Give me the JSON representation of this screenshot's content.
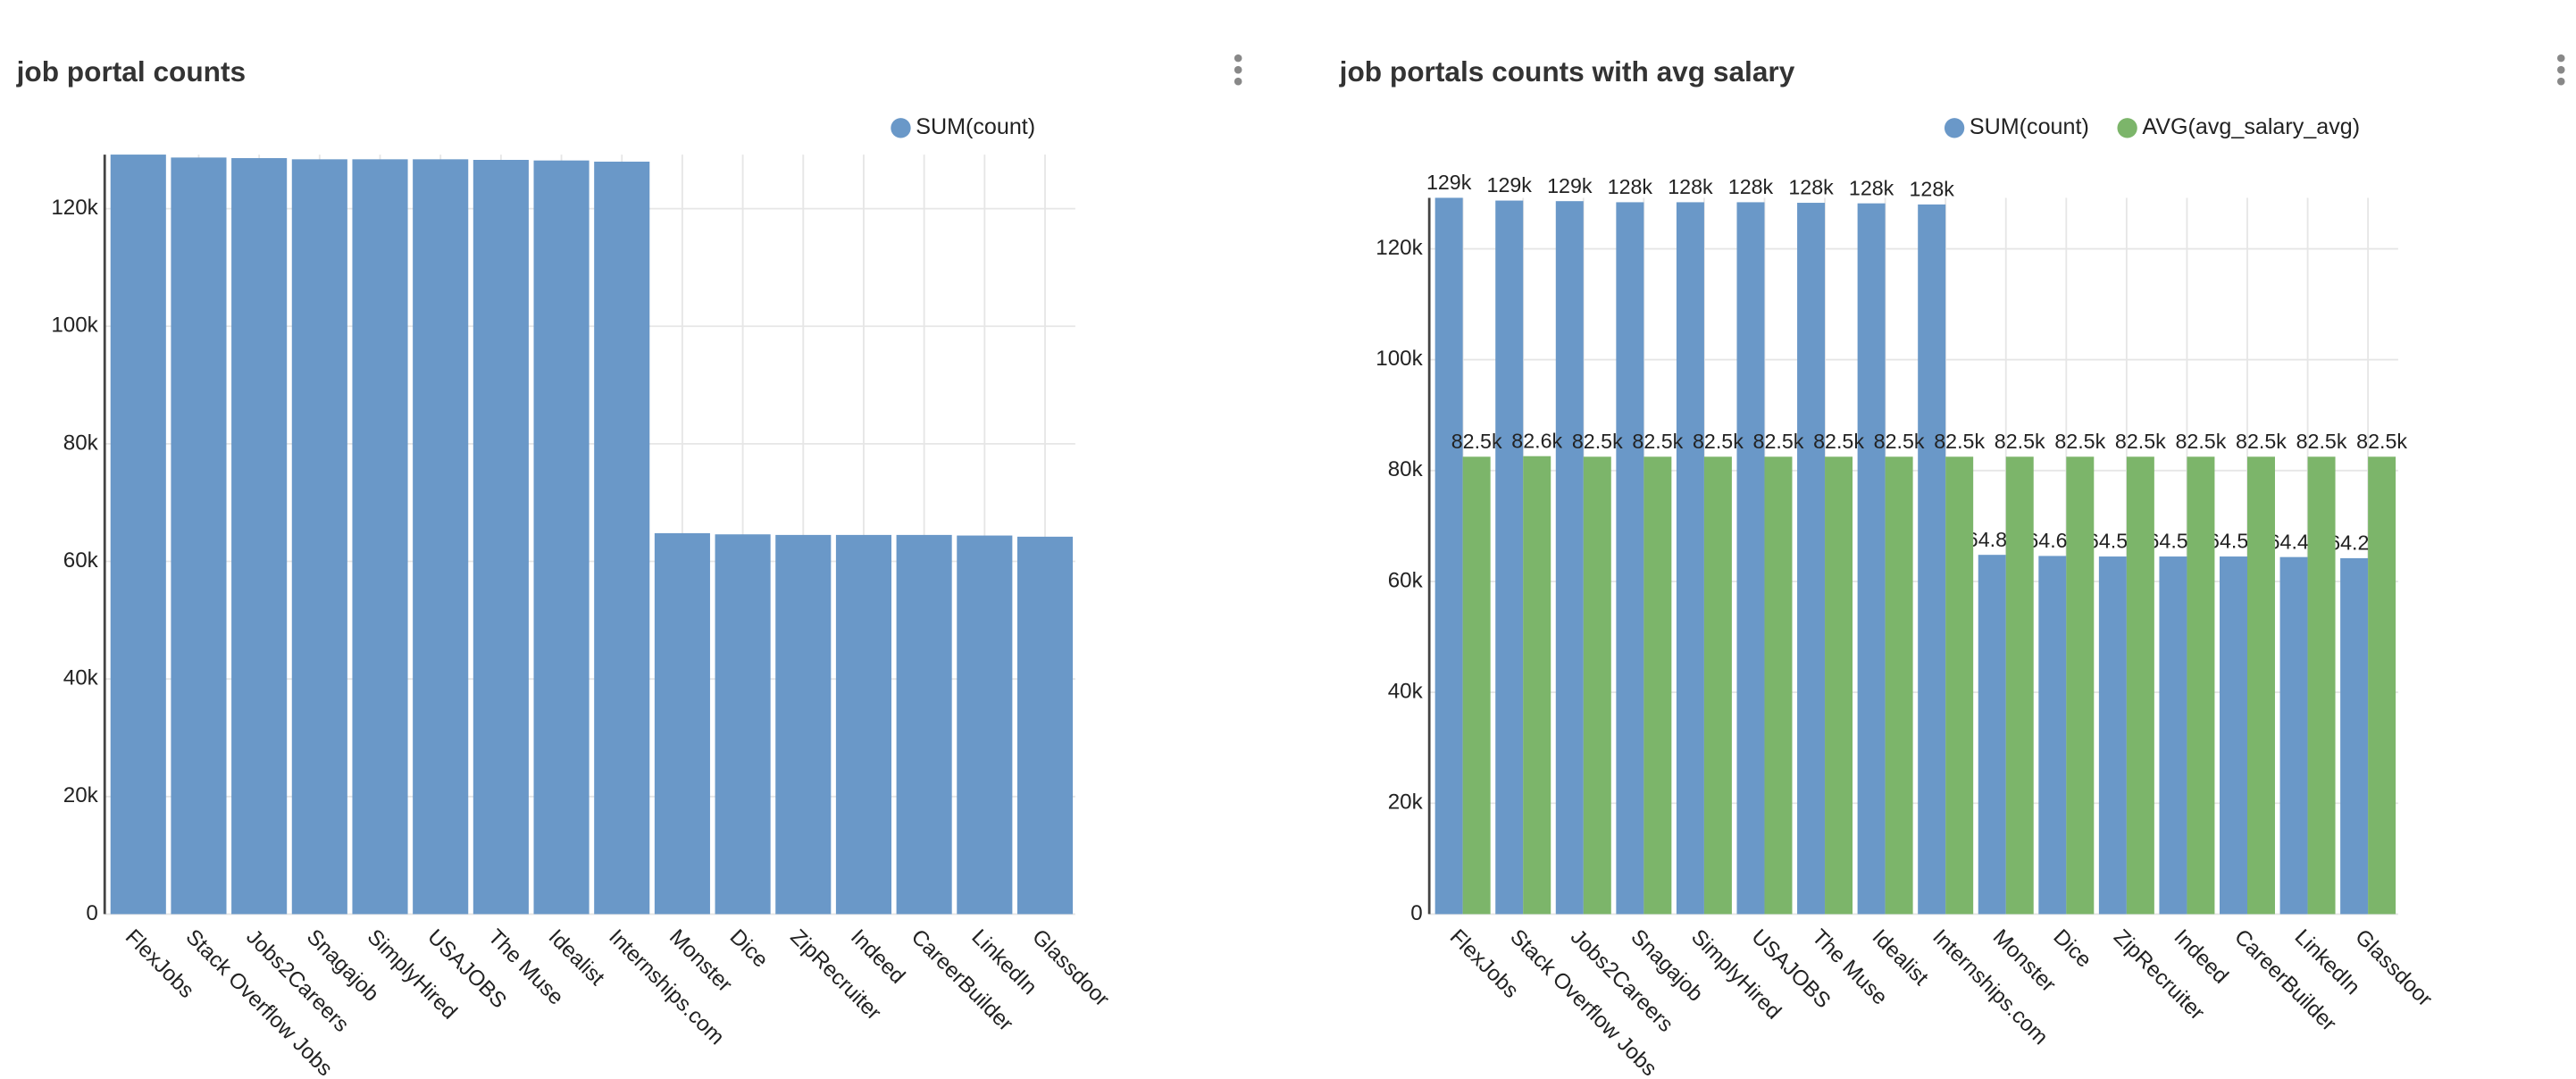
{
  "chart_data": [
    {
      "type": "bar",
      "title": "job portal counts",
      "categories": [
        "FlexJobs",
        "Stack Overflow Jobs",
        "Jobs2Careers",
        "Snagajob",
        "SimplyHired",
        "USAJOBS",
        "The Muse",
        "Idealist",
        "Internships.com",
        "Monster",
        "Dice",
        "ZipRecruiter",
        "Indeed",
        "CareerBuilder",
        "LinkedIn",
        "Glassdoor"
      ],
      "series": [
        {
          "name": "SUM(count)",
          "color": "#6a98c8",
          "values": [
            129200,
            128700,
            128600,
            128400,
            128400,
            128400,
            128300,
            128200,
            128000,
            64800,
            64600,
            64500,
            64500,
            64500,
            64400,
            64200
          ]
        }
      ],
      "ylim": [
        0,
        129200
      ],
      "yticks": [
        0,
        {
          "value": 20000,
          "label": "20k"
        },
        {
          "value": 40000,
          "label": "40k"
        },
        {
          "value": 60000,
          "label": "60k"
        },
        {
          "value": 80000,
          "label": "80k"
        },
        {
          "value": 100000,
          "label": "100k"
        },
        {
          "value": 120000,
          "label": "120k"
        }
      ],
      "grid": true
    },
    {
      "type": "bar",
      "title": "job portals counts with avg salary",
      "categories": [
        "FlexJobs",
        "Stack Overflow Jobs",
        "Jobs2Careers",
        "Snagajob",
        "SimplyHired",
        "USAJOBS",
        "The Muse",
        "Idealist",
        "Internships.com",
        "Monster",
        "Dice",
        "ZipRecruiter",
        "Indeed",
        "CareerBuilder",
        "LinkedIn",
        "Glassdoor"
      ],
      "series": [
        {
          "name": "SUM(count)",
          "color": "#6a98c8",
          "values": [
            129200,
            128700,
            128600,
            128400,
            128400,
            128400,
            128300,
            128200,
            128000,
            64800,
            64600,
            64500,
            64500,
            64500,
            64400,
            64200
          ],
          "value_labels": [
            "129k",
            "129k",
            "129k",
            "128k",
            "128k",
            "128k",
            "128k",
            "128k",
            "128k",
            "64.8k",
            "64.6k",
            "64.5k",
            "64.5k",
            "64.5k",
            "64.4k",
            "64.2k"
          ]
        },
        {
          "name": "AVG(avg_salary_avg)",
          "color": "#7cb56a",
          "values": [
            82500,
            82600,
            82500,
            82500,
            82500,
            82500,
            82500,
            82500,
            82500,
            82500,
            82500,
            82500,
            82500,
            82500,
            82500,
            82500
          ],
          "value_labels": [
            "82.5k",
            "82.6k",
            "82.5k",
            "82.5k",
            "82.5k",
            "82.5k",
            "82.5k",
            "82.5k",
            "82.5k",
            "82.5k",
            "82.5k",
            "82.5k",
            "82.5k",
            "82.5k",
            "82.5k",
            "82.5k"
          ]
        }
      ],
      "ylim": [
        0,
        129200
      ],
      "yticks": [
        0,
        {
          "value": 20000,
          "label": "20k"
        },
        {
          "value": 40000,
          "label": "40k"
        },
        {
          "value": 60000,
          "label": "60k"
        },
        {
          "value": 80000,
          "label": "80k"
        },
        {
          "value": 100000,
          "label": "100k"
        },
        {
          "value": 120000,
          "label": "120k"
        }
      ],
      "grid": true
    }
  ]
}
